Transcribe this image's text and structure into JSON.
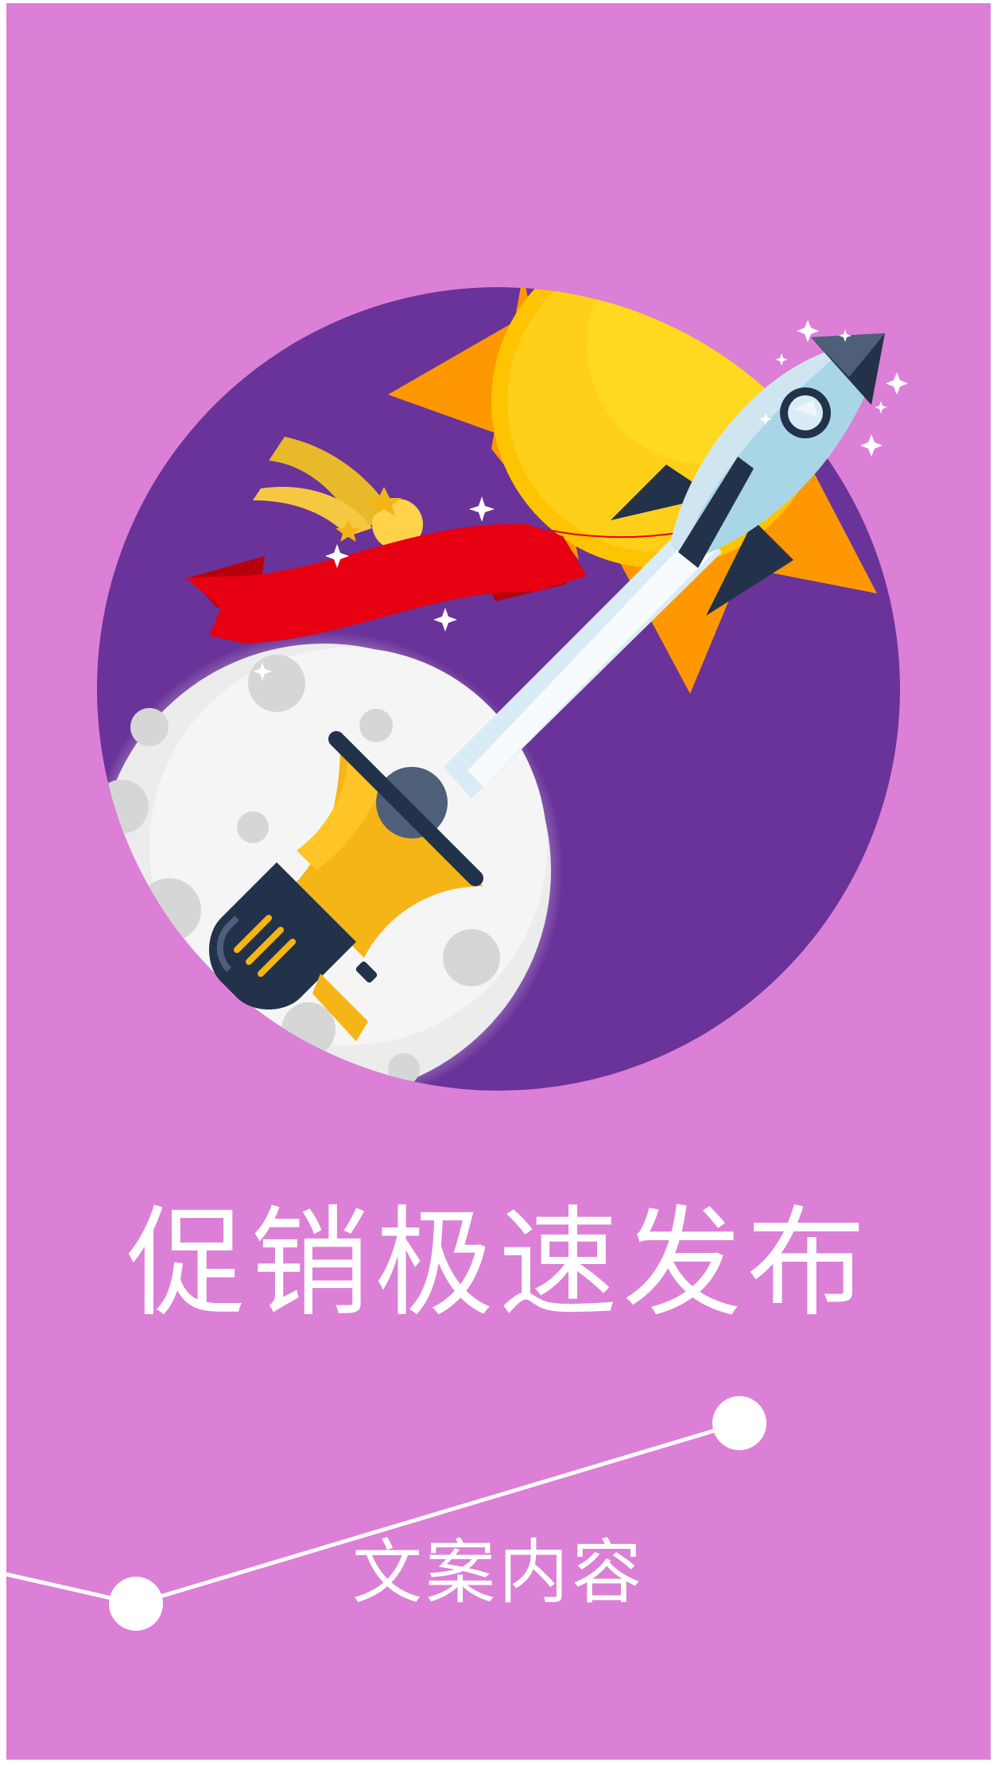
{
  "colors": {
    "background": "#dc7fd6",
    "circle": "#6a3399",
    "text": "#ffffff",
    "sun": "#ffc400",
    "sun_rays": "#ff9800",
    "banner": "#e60012",
    "moon": "#f2f2f2",
    "moon_craters": "#d6d6d6",
    "rocket": "#a8d6e6",
    "rocket_dark": "#22324a",
    "megaphone": "#f5b516"
  },
  "poster": {
    "title": "促销极速发布",
    "subtitle": "文案内容"
  },
  "icons": [
    "sun-icon",
    "rocket-icon",
    "moon-icon",
    "megaphone-icon",
    "shooting-star-icon",
    "ribbon-banner-icon",
    "sparkle-icon"
  ]
}
